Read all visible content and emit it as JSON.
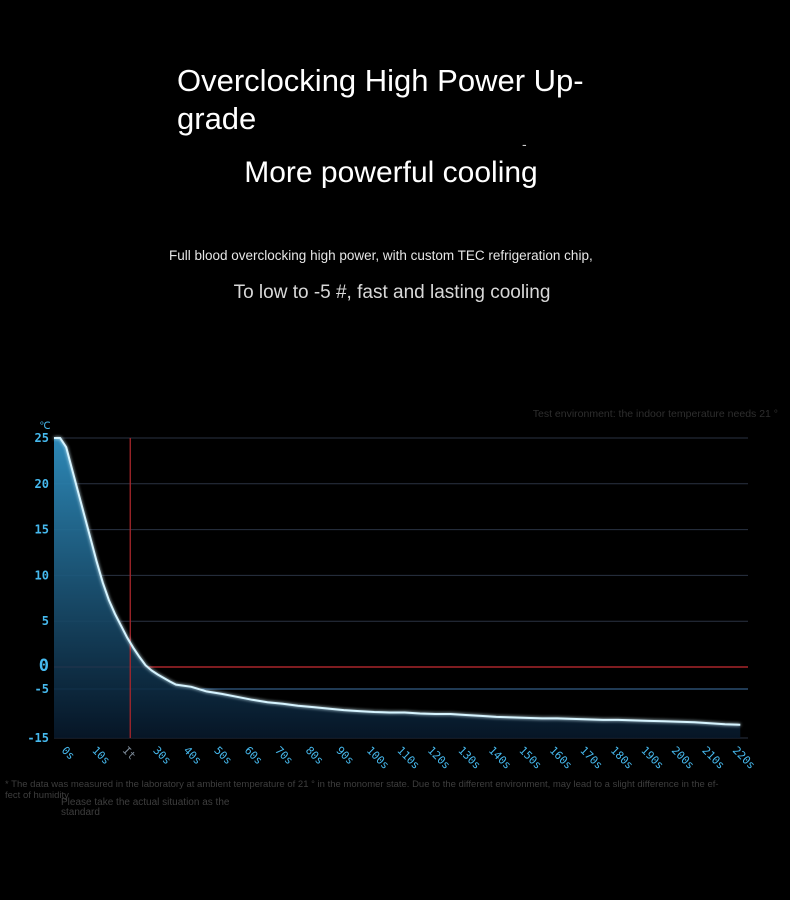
{
  "header": {
    "title": "Overclocking High Power Up-grade",
    "dash": "-",
    "subtitle": "More powerful cooling"
  },
  "description": {
    "line1": "Full blood overclocking high power, with custom TEC refrigeration chip,",
    "line2": "To low to -5 #, fast and lasting cooling"
  },
  "test_env_note": "Test environment: the indoor temperature needs 21 °",
  "footnote": {
    "main": "* The data was measured in the laboratory at ambient temperature of 21 ° in the monomer state. Due to the different environment, may lead to a slight difference in the ef-fect of humidity",
    "secondary": "Please take the actual situation as the standard"
  },
  "chart_data": {
    "type": "area",
    "yunit": "℃",
    "y_ticks": [
      "25",
      "20",
      "15",
      "10",
      "5",
      "0",
      "-5",
      "-15"
    ],
    "x_ticks": [
      "0s",
      "10s",
      "It",
      "30s",
      "40s",
      "50s",
      "60s",
      "70s",
      "80s",
      "90s",
      "100s",
      "110s",
      "120s",
      "130s",
      "140s",
      "150s",
      "160s",
      "170s",
      "180s",
      "190s",
      "200s",
      "210s",
      "220s"
    ],
    "highlight_x_label": "It",
    "grid": true,
    "series": [
      {
        "x": [
          0,
          2,
          4,
          6,
          8,
          10,
          12,
          14,
          16,
          18,
          20,
          22,
          24,
          26,
          28,
          30,
          32,
          34,
          36,
          38,
          40,
          45,
          50,
          55,
          60,
          65,
          70,
          75,
          80,
          85,
          90,
          95,
          100,
          105,
          110,
          115,
          120,
          125,
          130,
          135,
          140,
          145,
          150,
          155,
          160,
          165,
          170,
          175,
          180,
          185,
          190,
          195,
          200,
          205,
          210,
          215,
          220,
          225
        ],
        "y": [
          25,
          25,
          24,
          21.5,
          19,
          16.5,
          14,
          11.5,
          9.2,
          7.3,
          5.8,
          4.5,
          3.2,
          2.1,
          1.1,
          0.2,
          -0.8,
          -1.7,
          -2.5,
          -3.3,
          -4.0,
          -4.5,
          -5.5,
          -6.0,
          -6.6,
          -7.2,
          -7.7,
          -8.0,
          -8.4,
          -8.7,
          -9.0,
          -9.3,
          -9.5,
          -9.7,
          -9.8,
          -9.8,
          -10.0,
          -10.1,
          -10.1,
          -10.3,
          -10.5,
          -10.7,
          -10.8,
          -10.9,
          -11.0,
          -11.0,
          -11.1,
          -11.2,
          -11.3,
          -11.3,
          -11.4,
          -11.5,
          -11.6,
          -11.7,
          -11.8,
          -12.0,
          -12.2,
          -12.3
        ]
      }
    ],
    "reference_lines": {
      "x": 25,
      "y_red": 0,
      "y_blue": -5
    },
    "colors": {
      "line": "#d6f4ff",
      "area_top": "#2f8fc0",
      "area_bottom": "#07182a",
      "grid": "#2a3242",
      "grid_blue": "#3f73a8",
      "red": "#a8262b",
      "tick_text": "#46b9ee"
    }
  }
}
